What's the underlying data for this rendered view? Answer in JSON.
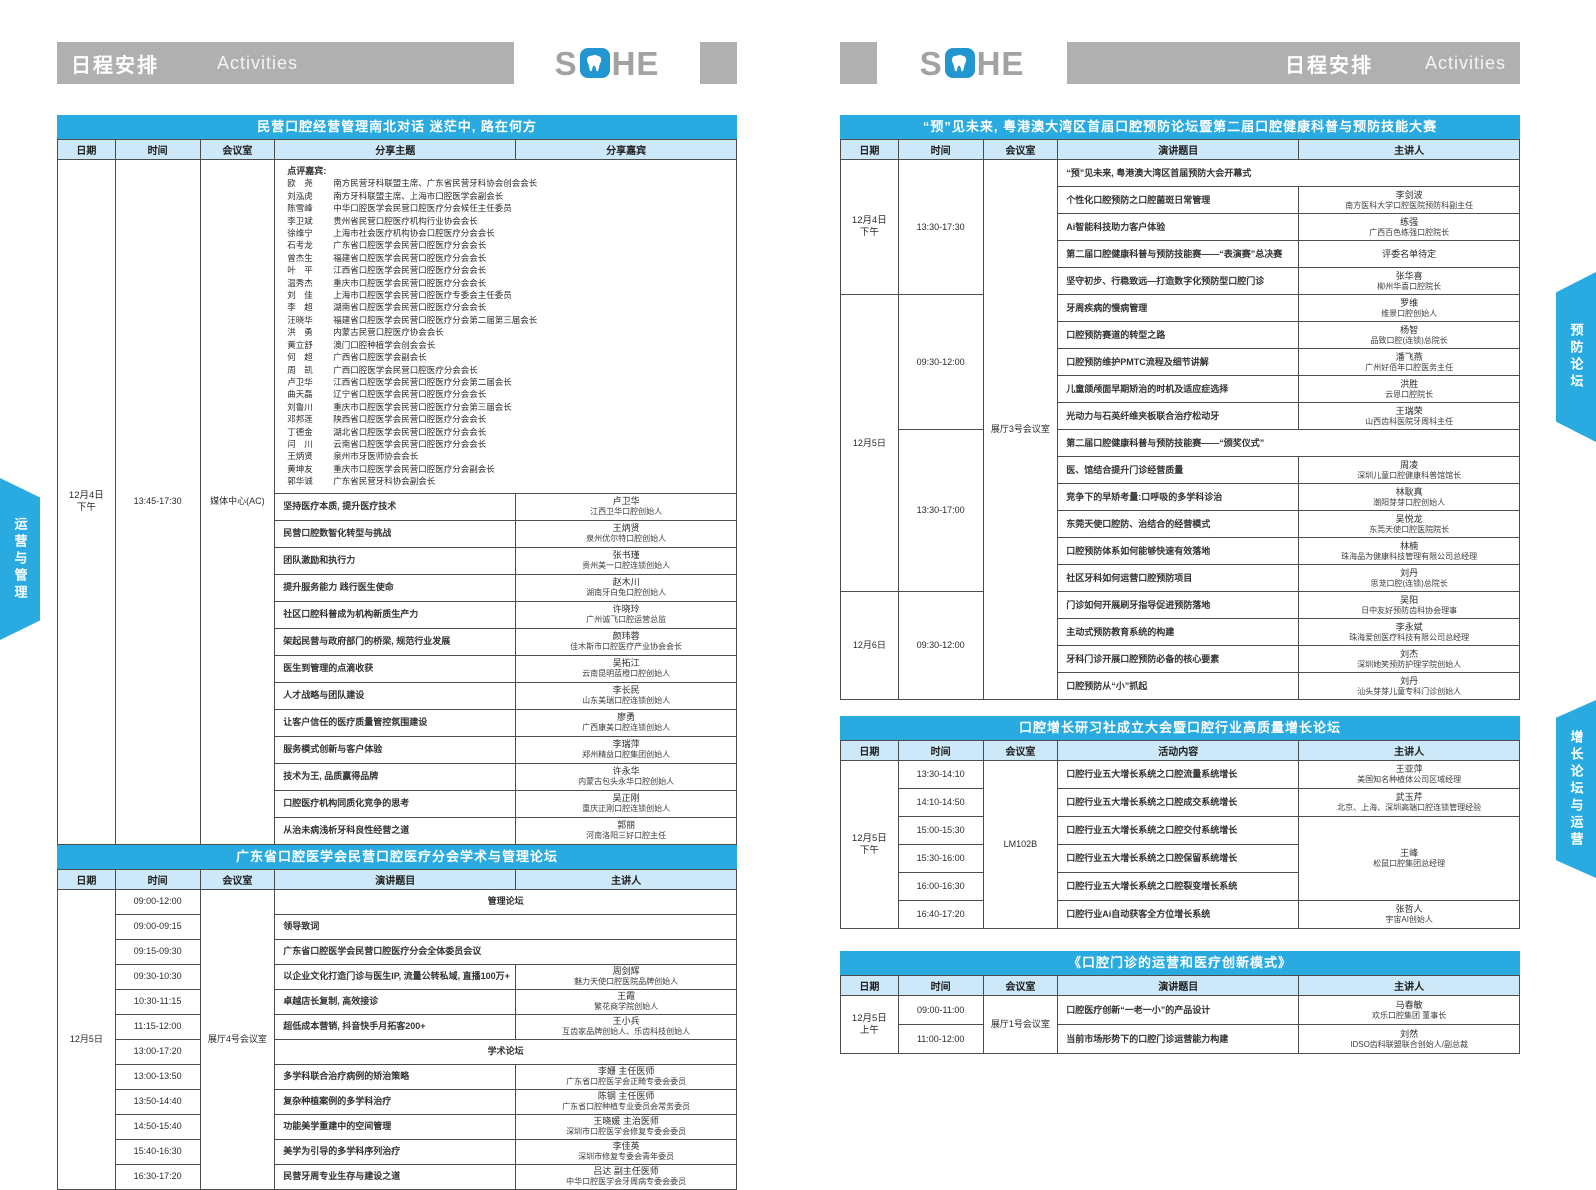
{
  "header": {
    "title_cn": "日程安排",
    "title_en": "Activities",
    "logo_s": "S",
    "logo_he": "HE"
  },
  "side_tabs": {
    "left": "运营与管理",
    "right_top": "预防论坛",
    "right_bottom": "增长论坛与运营"
  },
  "colors": {
    "accent_blue": "#29abe2",
    "header_gray": "#b0b0b0",
    "head_row_blue": "#cde8f8",
    "logo_blue": "#2196d1"
  },
  "guest_panel": {
    "label": "点评嘉宾:",
    "guests": [
      {
        "n": "欧　尧",
        "d": "南方民营牙科联盟主席、广东省民营牙科协会创会会长"
      },
      {
        "n": "刘泓虎",
        "d": "南方牙科联盟主席、上海市口腔医学会副会长"
      },
      {
        "n": "陈雪峰",
        "d": "中华口腔医学会民营口腔医疗分会候任主任委员"
      },
      {
        "n": "李卫斌",
        "d": "贵州省民营口腔医疗机构行业协会会长"
      },
      {
        "n": "徐维宁",
        "d": "上海市社会医疗机构协会口腔医疗分会会长"
      },
      {
        "n": "石考龙",
        "d": "广东省口腔医学会民营口腔医疗分会会长"
      },
      {
        "n": "曾杰生",
        "d": "福建省口腔医学会民营口腔医疗分会会长"
      },
      {
        "n": "叶　平",
        "d": "江西省口腔医学会民营口腔医疗分会会长"
      },
      {
        "n": "温秀杰",
        "d": "重庆市口腔医学会民营口腔医疗分会会长"
      },
      {
        "n": "刘　佳",
        "d": "上海市口腔医学会民营口腔医疗专委会主任委员"
      },
      {
        "n": "李　超",
        "d": "湖南省口腔医学会民营口腔医疗分会会长"
      },
      {
        "n": "汪晓华",
        "d": "福建省口腔医学会民营口腔医疗分会第二届第三届会长"
      },
      {
        "n": "洪　勇",
        "d": "内蒙古民营口腔医疗协会会长"
      },
      {
        "n": "黄立舒",
        "d": "澳门口腔种植学会创会会长"
      },
      {
        "n": "何　超",
        "d": "广西省口腔医学会副会长"
      },
      {
        "n": "周　凯",
        "d": "广西口腔医学会民营口腔医疗分会会长"
      },
      {
        "n": "卢卫华",
        "d": "江西省口腔医学会民营口腔医疗分会第二届会长"
      },
      {
        "n": "曲天磊",
        "d": "辽宁省口腔医学会民营口腔医疗分会会长"
      },
      {
        "n": "刘鲁川",
        "d": "重庆市口腔医学会民营口腔医疗分会第三届会长"
      },
      {
        "n": "邓邦莲",
        "d": "陕西省口腔医学会民营口腔医疗分会会长"
      },
      {
        "n": "丁德金",
        "d": "湖北省口腔医学会民营口腔医疗分会会长"
      },
      {
        "n": "闫　川",
        "d": "云南省口腔医学会民营口腔医疗分会会长"
      },
      {
        "n": "王炳贤",
        "d": "泉州市牙医师协会会长"
      },
      {
        "n": "黄坤友",
        "d": "重庆市口腔医学会民营口腔医疗分会副会长"
      },
      {
        "n": "郭华诚",
        "d": "广东省民营牙科协会副会长"
      }
    ]
  },
  "tables": [
    {
      "id": "left1",
      "cls": "lt1",
      "host": "lt1-host",
      "title": "民营口腔经营管理南北对话 迷茫中, 路在何方",
      "columns": [
        "日期",
        "时间",
        "会议室",
        "分享主题",
        "分享嘉宾"
      ],
      "widths": [
        "8.5%",
        "12.5%",
        "11%",
        "35.5%",
        "32.5%"
      ],
      "rows": [
        [
          {
            "t": [
              "12月4日",
              "下午"
            ],
            "rs": 14,
            "k": "date"
          },
          {
            "t": "13:45-17:30",
            "rs": 14,
            "k": "time"
          },
          {
            "t": "媒体中心(AC)",
            "rs": 14,
            "k": "room"
          },
          {
            "k": "guests",
            "cs": 2
          }
        ],
        [
          {
            "t": "坚持医疗本质, 提升医疗技术",
            "k": "topic"
          },
          {
            "t": [
              "卢卫华",
              "江西卫华口腔创始人"
            ],
            "k": "speaker"
          }
        ],
        [
          {
            "t": "民营口腔数智化转型与挑战",
            "k": "topic"
          },
          {
            "t": [
              "王炳贤",
              "泉州优尔特口腔创始人"
            ],
            "k": "speaker"
          }
        ],
        [
          {
            "t": "团队激励和执行力",
            "k": "topic"
          },
          {
            "t": [
              "张书瑾",
              "贵州美一口腔连锁创始人"
            ],
            "k": "speaker"
          }
        ],
        [
          {
            "t": "提升服务能力 践行医生使命",
            "k": "topic"
          },
          {
            "t": [
              "赵木川",
              "湖南牙白兔口腔创始人"
            ],
            "k": "speaker"
          }
        ],
        [
          {
            "t": "社区口腔科普成为机构新质生产力",
            "k": "topic"
          },
          {
            "t": [
              "许晓玲",
              "广州诚飞口腔运营总监"
            ],
            "k": "speaker"
          }
        ],
        [
          {
            "t": "架起民营与政府部门的桥梁, 规范行业发展",
            "k": "topic"
          },
          {
            "t": [
              "颜玮蓉",
              "佳木斯市口腔医疗产业协会会长"
            ],
            "k": "speaker"
          }
        ],
        [
          {
            "t": "医生到管理的点滴收获",
            "k": "topic"
          },
          {
            "t": [
              "吴拓江",
              "云南昆明蓝橙口腔创始人"
            ],
            "k": "speaker"
          }
        ],
        [
          {
            "t": "人才战略与团队建设",
            "k": "topic"
          },
          {
            "t": [
              "李长民",
              "山东美瑞口腔连锁创始人"
            ],
            "k": "speaker"
          }
        ],
        [
          {
            "t": "让客户信任的医疗质量管控氛围建设",
            "k": "topic"
          },
          {
            "t": [
              "廖勇",
              "广西康美口腔连锁创始人"
            ],
            "k": "speaker"
          }
        ],
        [
          {
            "t": "服务模式创新与客户体验",
            "k": "topic"
          },
          {
            "t": [
              "李瑞萍",
              "郑州精益口腔集团创始人"
            ],
            "k": "speaker"
          }
        ],
        [
          {
            "t": "技术为王, 品质赢得品牌",
            "k": "topic"
          },
          {
            "t": [
              "许永华",
              "内蒙古包头永华口腔创始人"
            ],
            "k": "speaker"
          }
        ],
        [
          {
            "t": "口腔医疗机构同质化竞争的思考",
            "k": "topic"
          },
          {
            "t": [
              "吴正刚",
              "重庆正刚口腔连锁创始人"
            ],
            "k": "speaker"
          }
        ],
        [
          {
            "t": "从治未病浅析牙科良性经营之道",
            "k": "topic"
          },
          {
            "t": [
              "郭丽",
              "河南洛阳三好口腔主任"
            ],
            "k": "speaker"
          }
        ]
      ]
    },
    {
      "id": "left2",
      "cls": "lt2",
      "host": "lt2-host",
      "title": "广东省口腔医学会民营口腔医疗分会学术与管理论坛",
      "columns": [
        "日期",
        "时间",
        "会议室",
        "演讲题目",
        "主讲人"
      ],
      "widths": [
        "8.5%",
        "12.5%",
        "11%",
        "35.5%",
        "32.5%"
      ],
      "rows": [
        [
          {
            "t": "12月5日",
            "rs": 12,
            "k": "date"
          },
          {
            "t": "09:00-12:00",
            "k": "time"
          },
          {
            "t": "展厅4号会议室",
            "rs": 12,
            "k": "room"
          },
          {
            "t": "管理论坛",
            "cs": 2,
            "k": "forum"
          }
        ],
        [
          {
            "t": "09:00-09:15",
            "k": "time"
          },
          {
            "t": "领导致词",
            "cs": 2,
            "k": "topic"
          }
        ],
        [
          {
            "t": "09:15-09:30",
            "k": "time"
          },
          {
            "t": "广东省口腔医学会民营口腔医疗分会全体委员会议",
            "cs": 2,
            "k": "topic"
          }
        ],
        [
          {
            "t": "09:30-10:30",
            "k": "time"
          },
          {
            "t": "以企业文化打造门诊与医生IP, 流量公转私域, 直播100万+",
            "k": "topic"
          },
          {
            "t": [
              "周剑辉",
              "魅力天使口腔医院品牌创始人"
            ],
            "k": "speaker"
          }
        ],
        [
          {
            "t": "10:30-11:15",
            "k": "time"
          },
          {
            "t": "卓越店长复制, 高效接诊",
            "k": "topic"
          },
          {
            "t": [
              "王霞",
              "繁花商学院创始人"
            ],
            "k": "speaker"
          }
        ],
        [
          {
            "t": "11:15-12:00",
            "k": "time"
          },
          {
            "t": "超低成本营销, 抖音快手月拓客200+",
            "k": "topic"
          },
          {
            "t": [
              "王小兵",
              "互齿家品牌创始人、乐齿科技创始人"
            ],
            "k": "speaker"
          }
        ],
        [
          {
            "t": "13:00-17:20",
            "k": "time"
          },
          {
            "t": "学术论坛",
            "cs": 2,
            "k": "forum"
          }
        ],
        [
          {
            "t": "13:00-13:50",
            "k": "time"
          },
          {
            "t": "多学科联合治疗病例的矫治策略",
            "k": "topic"
          },
          {
            "t": [
              "李姗 主任医师",
              "广东省口腔医学会正畸专委会委员"
            ],
            "k": "speaker"
          }
        ],
        [
          {
            "t": "13:50-14:40",
            "k": "time"
          },
          {
            "t": "复杂种植案例的多学科治疗",
            "k": "topic"
          },
          {
            "t": [
              "陈钢 主任医师",
              "广东省口腔种植专业委员会常务委员"
            ],
            "k": "speaker"
          }
        ],
        [
          {
            "t": "14:50-15:40",
            "k": "time"
          },
          {
            "t": "功能美学重建中的空间管理",
            "k": "topic"
          },
          {
            "t": [
              "王晓媛 主治医师",
              "深圳市口腔医学会修复专委会委员"
            ],
            "k": "speaker"
          }
        ],
        [
          {
            "t": "15:40-16:30",
            "k": "time"
          },
          {
            "t": "美学为引导的多学科序列治疗",
            "k": "topic"
          },
          {
            "t": [
              "李佳英",
              "深圳市修复专委会青年委员"
            ],
            "k": "speaker"
          }
        ],
        [
          {
            "t": "16:30-17:20",
            "k": "time"
          },
          {
            "t": "民营牙周专业生存与建设之道",
            "k": "topic"
          },
          {
            "t": [
              "吕达 副主任医师",
              "中华口腔医学会牙周病专委会委员"
            ],
            "k": "speaker"
          }
        ]
      ]
    },
    {
      "id": "right1",
      "cls": "rt1",
      "host": "rt1-host",
      "title": "“预”见未来, 粤港澳大湾区首届口腔预防论坛暨第二届口腔健康科普与预防技能大赛",
      "columns": [
        "日期",
        "时间",
        "会议室",
        "演讲题目",
        "主讲人"
      ],
      "widths": [
        "8.5%",
        "12.5%",
        "11%",
        "35.5%",
        "32.5%"
      ],
      "rows": [
        [
          {
            "t": [
              "12月4日",
              "下午"
            ],
            "rs": 5,
            "k": "date"
          },
          {
            "t": "13:30-17:30",
            "rs": 5,
            "k": "time"
          },
          {
            "t": "展厅3号会议室",
            "rs": 20,
            "k": "room"
          },
          {
            "t": "“预”见未来, 粤港澳大湾区首届预防大会开幕式",
            "cs": 2,
            "k": "topic"
          }
        ],
        [
          {
            "t": "个性化口腔预防之口腔菌斑日常管理",
            "k": "topic"
          },
          {
            "t": [
              "李剑波",
              "南方医科大学口腔医院预防科副主任"
            ],
            "k": "speaker"
          }
        ],
        [
          {
            "t": "Ai智能科技助力客户体验",
            "k": "topic"
          },
          {
            "t": [
              "练强",
              "广西百色练强口腔院长"
            ],
            "k": "speaker"
          }
        ],
        [
          {
            "t": "第二届口腔健康科普与预防技能赛——“表演赛”总决赛",
            "k": "topic"
          },
          {
            "t": "评委名单待定",
            "k": "speaker"
          }
        ],
        [
          {
            "t": "坚守初步、行稳致远—打造数字化预防型口腔门诊",
            "k": "topic"
          },
          {
            "t": [
              "张华喜",
              "柳州华喜口腔院长"
            ],
            "k": "speaker"
          }
        ],
        [
          {
            "t": "12月5日",
            "rs": 11,
            "k": "date"
          },
          {
            "t": "09:30-12:00",
            "rs": 5,
            "k": "time"
          },
          {
            "t": "牙周疾病的慢病管理",
            "k": "topic"
          },
          {
            "t": [
              "罗维",
              "维景口腔创始人"
            ],
            "k": "speaker"
          }
        ],
        [
          {
            "t": "口腔预防赛道的转型之路",
            "k": "topic"
          },
          {
            "t": [
              "杨智",
              "品致口腔(连锁)总院长"
            ],
            "k": "speaker"
          }
        ],
        [
          {
            "t": "口腔预防维护PMTC流程及细节讲解",
            "k": "topic"
          },
          {
            "t": [
              "潘飞燕",
              "广州好佰年口腔医务主任"
            ],
            "k": "speaker"
          }
        ],
        [
          {
            "t": "儿童颌颅面早期矫治的时机及适应症选择",
            "k": "topic"
          },
          {
            "t": [
              "洪胜",
              "云恩口腔院长"
            ],
            "k": "speaker"
          }
        ],
        [
          {
            "t": "光动力与石英纤维夹板联合治疗松动牙",
            "k": "topic"
          },
          {
            "t": [
              "王瑞荣",
              "山西齿科医院牙周科主任"
            ],
            "k": "speaker"
          }
        ],
        [
          {
            "t": "13:30-17:00",
            "rs": 6,
            "k": "time"
          },
          {
            "t": "第二届口腔健康科普与预防技能赛——“颁奖仪式”",
            "cs": 2,
            "k": "topic"
          }
        ],
        [
          {
            "t": "医、馆结合提升门诊经营质量",
            "k": "topic"
          },
          {
            "t": [
              "周凌",
              "深圳儿童口腔健康科普馆馆长"
            ],
            "k": "speaker"
          }
        ],
        [
          {
            "t": "竞争下的早矫考量:口呼吸的多学科诊治",
            "k": "topic"
          },
          {
            "t": [
              "林耿真",
              "潮阳芽芽口腔创始人"
            ],
            "k": "speaker"
          }
        ],
        [
          {
            "t": "东莞天使口腔防、治结合的经营模式",
            "k": "topic"
          },
          {
            "t": [
              "吴悦龙",
              "东莞天使口腔医院院长"
            ],
            "k": "speaker"
          }
        ],
        [
          {
            "t": "口腔预防体系如何能够快速有效落地",
            "k": "topic"
          },
          {
            "t": [
              "林楠",
              "珠海品为健康科技管理有限公司总经理"
            ],
            "k": "speaker"
          }
        ],
        [
          {
            "t": "社区牙科如何运营口腔预防项目",
            "k": "topic"
          },
          {
            "t": [
              "刘丹",
              "思茏口腔(连锁)总院长"
            ],
            "k": "speaker"
          }
        ],
        [
          {
            "t": "12月6日",
            "rs": 4,
            "k": "date"
          },
          {
            "t": "09:30-12:00",
            "rs": 4,
            "k": "time"
          },
          {
            "t": "门诊如何开展刷牙指导促进预防落地",
            "k": "topic"
          },
          {
            "t": [
              "吴阳",
              "日中友好预防齿科协会理事"
            ],
            "k": "speaker"
          }
        ],
        [
          {
            "t": "主动式预防教育系统的构建",
            "k": "topic"
          },
          {
            "t": [
              "李永斌",
              "珠海爱创医疗科技有限公司总经理"
            ],
            "k": "speaker"
          }
        ],
        [
          {
            "t": "牙科门诊开展口腔预防必备的核心要素",
            "k": "topic"
          },
          {
            "t": [
              "刘杰",
              "深圳她笑预防护理学院创始人"
            ],
            "k": "speaker"
          }
        ],
        [
          {
            "t": "口腔预防从“小”抓起",
            "k": "topic"
          },
          {
            "t": [
              "刘丹",
              "汕头芽芽儿童专科门诊创始人"
            ],
            "k": "speaker"
          }
        ]
      ]
    },
    {
      "id": "right2",
      "cls": "rt2",
      "host": "rt2-host",
      "title": "口腔增长研习社成立大会暨口腔行业高质量增长论坛",
      "columns": [
        "日期",
        "时间",
        "会议室",
        "活动内容",
        "主讲人"
      ],
      "widths": [
        "8.5%",
        "12.5%",
        "11%",
        "35.5%",
        "32.5%"
      ],
      "rows": [
        [
          {
            "t": [
              "12月5日",
              "下午"
            ],
            "rs": 6,
            "k": "date"
          },
          {
            "t": "13:30-14:10",
            "k": "time"
          },
          {
            "t": "LM102B",
            "rs": 6,
            "k": "room"
          },
          {
            "t": "口腔行业五大增长系统之口腔流量系统增长",
            "k": "topic"
          },
          {
            "t": [
              "王亚萍",
              "美国知名种植体公司区域经理"
            ],
            "k": "speaker"
          }
        ],
        [
          {
            "t": "14:10-14:50",
            "k": "time"
          },
          {
            "t": "口腔行业五大增长系统之口腔成交系统增长",
            "k": "topic"
          },
          {
            "t": [
              "武玉芹",
              "北京、上海、深圳高端口腔连锁管理经验"
            ],
            "k": "speaker"
          }
        ],
        [
          {
            "t": "15:00-15:30",
            "k": "time"
          },
          {
            "t": "口腔行业五大增长系统之口腔交付系统增长",
            "k": "topic"
          },
          {
            "t": [
              "王峰",
              "松鼠口腔集团总经理"
            ],
            "rs": 3,
            "k": "speaker"
          }
        ],
        [
          {
            "t": "15:30-16:00",
            "k": "time"
          },
          {
            "t": "口腔行业五大增长系统之口腔保留系统增长",
            "k": "topic"
          }
        ],
        [
          {
            "t": "16:00-16:30",
            "k": "time"
          },
          {
            "t": "口腔行业五大增长系统之口腔裂变增长系统",
            "k": "topic"
          }
        ],
        [
          {
            "t": "16:40-17:20",
            "k": "time"
          },
          {
            "t": "口腔行业Ai自动获客全方位增长系统",
            "k": "topic"
          },
          {
            "t": [
              "张哲人",
              "宇宙AI创始人"
            ],
            "k": "speaker"
          }
        ]
      ]
    },
    {
      "id": "right3",
      "cls": "rt3",
      "host": "rt3-host",
      "title": "《口腔门诊的运营和医疗创新模式》",
      "columns": [
        "日期",
        "时间",
        "会议室",
        "演讲题目",
        "主讲人"
      ],
      "widths": [
        "8.5%",
        "12.5%",
        "11%",
        "35.5%",
        "32.5%"
      ],
      "rows": [
        [
          {
            "t": [
              "12月5日",
              "上午"
            ],
            "rs": 2,
            "k": "date"
          },
          {
            "t": "09:00-11:00",
            "k": "time"
          },
          {
            "t": "展厅1号会议室",
            "rs": 2,
            "k": "room"
          },
          {
            "t": "口腔医疗创新“一老一小”的产品设计",
            "k": "topic"
          },
          {
            "t": [
              "马春敏",
              "欢乐口腔集团 董事长"
            ],
            "k": "speaker"
          }
        ],
        [
          {
            "t": "11:00-12:00",
            "k": "time"
          },
          {
            "t": "当前市场形势下的口腔门诊运营能力构建",
            "k": "topic"
          },
          {
            "t": [
              "刘然",
              "IDSO齿科联盟联合创始人/副总裁"
            ],
            "k": "speaker"
          }
        ]
      ]
    }
  ]
}
